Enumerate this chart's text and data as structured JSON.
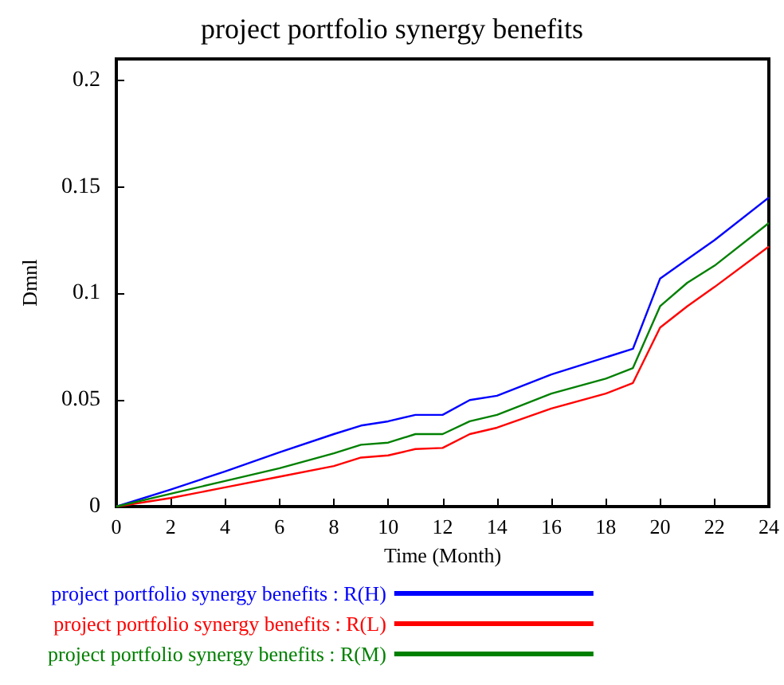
{
  "chart_data": {
    "type": "line",
    "title": "project portfolio synergy benefits",
    "xlabel": "Time (Month)",
    "ylabel": "Dmnl",
    "x": [
      0,
      2,
      4,
      6,
      8,
      9,
      10,
      11,
      12,
      13,
      14,
      16,
      18,
      19,
      20,
      21,
      22,
      24
    ],
    "series": [
      {
        "name": "project portfolio synergy benefits : R(H)",
        "color": "#0000ff",
        "values": [
          0,
          0.008,
          0.0165,
          0.0255,
          0.034,
          0.038,
          0.04,
          0.043,
          0.043,
          0.05,
          0.052,
          0.062,
          0.07,
          0.074,
          0.107,
          0.116,
          0.125,
          0.145
        ]
      },
      {
        "name": "project portfolio synergy benefits : R(L)",
        "color": "#ff0000",
        "values": [
          0,
          0.004,
          0.009,
          0.014,
          0.019,
          0.023,
          0.024,
          0.027,
          0.0275,
          0.034,
          0.037,
          0.046,
          0.053,
          0.058,
          0.084,
          0.094,
          0.103,
          0.122
        ]
      },
      {
        "name": "project portfolio synergy benefits : R(M)",
        "color": "#008000",
        "values": [
          0,
          0.006,
          0.012,
          0.018,
          0.025,
          0.029,
          0.03,
          0.034,
          0.034,
          0.04,
          0.043,
          0.053,
          0.06,
          0.065,
          0.094,
          0.105,
          0.113,
          0.133
        ]
      }
    ],
    "xlim": [
      0,
      24
    ],
    "xticks": [
      0,
      2,
      4,
      6,
      8,
      10,
      12,
      14,
      16,
      18,
      20,
      22,
      24
    ],
    "ylim": [
      0,
      0.21
    ],
    "yticks": [
      0,
      0.05,
      0.1,
      0.15,
      0.2
    ],
    "grid": false,
    "legend": "bottom",
    "marker": "none",
    "line_style": "solid"
  }
}
